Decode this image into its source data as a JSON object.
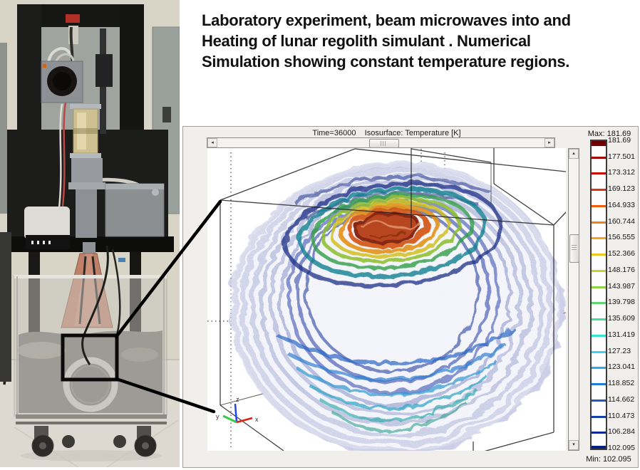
{
  "slide": {
    "caption_lines": [
      "Laboratory experiment, beam microwaves into and",
      "Heating of lunar regolith simulant .  Numerical",
      "Simulation showing constant temperature regions."
    ]
  },
  "simulation_window": {
    "title": "Time=36000    Isosurface: Temperature [K]",
    "axes": {
      "x": "x",
      "y": "y",
      "z": "z"
    },
    "icons": {
      "scroll_left": "◂",
      "scroll_right": "▸",
      "scroll_up": "▴",
      "scroll_down": "▾"
    },
    "colorbar": {
      "max_label": "Max: 181.69",
      "min_label": "Min: 102.095",
      "ticks": [
        {
          "value": "181.69",
          "color": "#6b0001"
        },
        {
          "value": "177.501",
          "color": "#a40000"
        },
        {
          "value": "173.312",
          "color": "#c90d00"
        },
        {
          "value": "169.123",
          "color": "#e43107"
        },
        {
          "value": "164.933",
          "color": "#f05c0c"
        },
        {
          "value": "160.744",
          "color": "#f97f0e"
        },
        {
          "value": "156.555",
          "color": "#fba313"
        },
        {
          "value": "152.366",
          "color": "#eec81e"
        },
        {
          "value": "148.176",
          "color": "#c6d52f"
        },
        {
          "value": "143.987",
          "color": "#8fd446"
        },
        {
          "value": "139.798",
          "color": "#5dd96e"
        },
        {
          "value": "135.609",
          "color": "#3fe29b"
        },
        {
          "value": "131.419",
          "color": "#39e3cc"
        },
        {
          "value": "127.23",
          "color": "#41d2ef"
        },
        {
          "value": "123.041",
          "color": "#2fa7e9"
        },
        {
          "value": "118.852",
          "color": "#1f7cd8"
        },
        {
          "value": "114.662",
          "color": "#1a5ac7"
        },
        {
          "value": "110.473",
          "color": "#143fb2"
        },
        {
          "value": "106.284",
          "color": "#0d299c"
        },
        {
          "value": "102.095",
          "color": "#071c85"
        }
      ]
    }
  },
  "chart_data": {
    "type": "heatmap",
    "subtype": "3d-isosurface",
    "title": "Isosurface: Temperature [K]",
    "time_label": "Time=36000",
    "colormap": "jet",
    "max": 181.69,
    "min": 102.095,
    "isolevels": [
      181.69,
      177.501,
      173.312,
      169.123,
      164.933,
      160.744,
      156.555,
      152.366,
      148.176,
      143.987,
      139.798,
      135.609,
      131.419,
      127.23,
      123.041,
      118.852,
      114.662,
      110.473,
      106.284,
      102.095
    ],
    "legend_position": "right",
    "axes_triad": [
      "x",
      "y",
      "z"
    ]
  }
}
